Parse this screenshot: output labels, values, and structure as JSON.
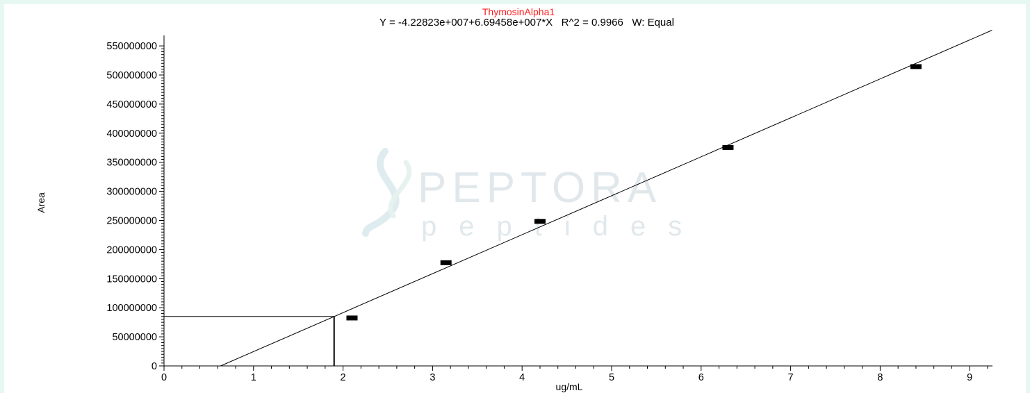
{
  "chart_data": {
    "type": "scatter",
    "title": "ThymosinAlpha1",
    "subtitle": "Y = -4.22823e+007+6.69458e+007*X   R^2 = 0.9966   W: Equal",
    "xlabel": "ug/mL",
    "ylabel": "Area",
    "xlim": [
      0,
      9.25
    ],
    "ylim": [
      0,
      600000000
    ],
    "x_ticks": [
      "0",
      "1",
      "2",
      "3",
      "4",
      "5",
      "6",
      "7",
      "8",
      "9"
    ],
    "y_ticks": [
      "0",
      "50000000",
      "100000000",
      "150000000",
      "200000000",
      "250000000",
      "300000000",
      "350000000",
      "400000000",
      "450000000",
      "500000000",
      "550000000"
    ],
    "grid": false,
    "points": [
      {
        "x": 2.1,
        "y": 83000000
      },
      {
        "x": 3.15,
        "y": 178000000
      },
      {
        "x": 4.2,
        "y": 249000000
      },
      {
        "x": 6.3,
        "y": 376000000
      },
      {
        "x": 8.4,
        "y": 515000000
      }
    ],
    "fit": {
      "intercept": -42282300,
      "slope": 66945800
    },
    "sample_marker": {
      "x": 1.9,
      "y": 85000000
    },
    "colors": {
      "title": "#ff2020",
      "background": "#e6f8f1",
      "watermark": "#c9d6dd"
    }
  },
  "watermark": {
    "name": "PEPTORA",
    "tagline": "peptides"
  }
}
